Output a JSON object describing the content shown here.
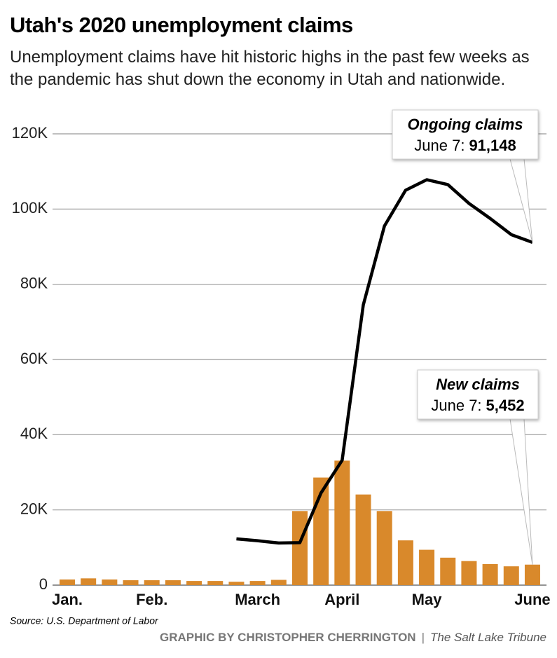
{
  "chart_data": {
    "type": "bar",
    "title": "Utah's 2020 unemployment claims",
    "subtitle": "Unemployment claims have hit historic highs in the past few weeks as the pandemic has shut down the economy in Utah and nationwide.",
    "categories": [
      "Jan.",
      null,
      null,
      null,
      "Feb.",
      null,
      null,
      null,
      null,
      "March",
      null,
      null,
      null,
      "April",
      null,
      null,
      null,
      "May",
      null,
      null,
      null,
      null,
      "June"
    ],
    "series": [
      {
        "name": "New claims",
        "type": "bar",
        "color": "#d9892b",
        "values": [
          1500,
          1800,
          1500,
          1300,
          1300,
          1300,
          1100,
          1100,
          900,
          1100,
          1400,
          19700,
          28600,
          33100,
          24100,
          19700,
          11900,
          9400,
          7300,
          6400,
          5600,
          5000,
          5452
        ],
        "value_labels": [
          null,
          null,
          null,
          null,
          null,
          null,
          null,
          null,
          null,
          null,
          null,
          null,
          null,
          null,
          null,
          null,
          null,
          null,
          null,
          null,
          null,
          null,
          "5,452"
        ]
      },
      {
        "name": "Ongoing claims",
        "type": "line",
        "color": "#000000",
        "values": [
          null,
          null,
          null,
          null,
          null,
          null,
          null,
          null,
          12300,
          11800,
          11200,
          11300,
          24500,
          33200,
          74500,
          95500,
          105000,
          107800,
          106500,
          101500,
          97500,
          93200,
          91148
        ],
        "value_labels": [
          null,
          null,
          null,
          null,
          null,
          null,
          null,
          null,
          null,
          null,
          null,
          null,
          null,
          null,
          null,
          null,
          null,
          null,
          null,
          null,
          null,
          null,
          "91,148"
        ]
      }
    ],
    "annotations": [
      "June 7:",
      "June 7:"
    ],
    "ylim": [
      0,
      120000
    ],
    "yticks": [
      0,
      {
        "value": 20000,
        "label": "20K"
      },
      {
        "value": 40000,
        "label": "40K"
      },
      {
        "value": 60000,
        "label": "60K"
      },
      {
        "value": 80000,
        "label": "80K"
      },
      {
        "value": 100000,
        "label": "100K"
      },
      {
        "value": 120000,
        "label": "120K"
      }
    ],
    "grid": true,
    "source": "Source: U.S. Department of Labor",
    "credit": "GRAPHIC BY CHRISTOPHER CHERRINGTON",
    "publisher": "The Salt Lake Tribune"
  }
}
